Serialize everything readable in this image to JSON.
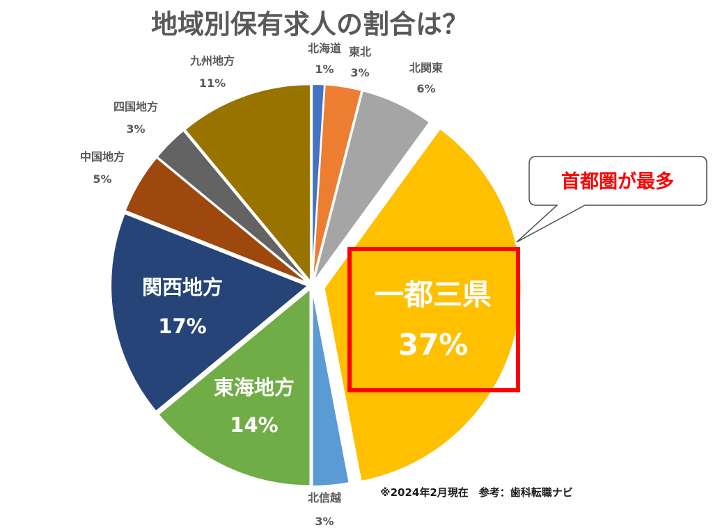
{
  "chart_data": {
    "type": "pie",
    "title": "地域別保有求人の割合は？",
    "slices": [
      {
        "name": "北海道",
        "value": 1,
        "label": "1%",
        "color": "#4472c4"
      },
      {
        "name": "東北",
        "value": 3,
        "label": "3%",
        "color": "#ed7d31"
      },
      {
        "name": "北関東",
        "value": 6,
        "label": "6%",
        "color": "#a5a5a5"
      },
      {
        "name": "一都三県",
        "value": 37,
        "label": "37%",
        "color": "#ffc000"
      },
      {
        "name": "北信越",
        "value": 3,
        "label": "3%",
        "color": "#5b9bd5"
      },
      {
        "name": "東海地方",
        "value": 14,
        "label": "14%",
        "color": "#70ad47"
      },
      {
        "name": "関西地方",
        "value": 17,
        "label": "17%",
        "color": "#264478"
      },
      {
        "name": "中国地方",
        "value": 5,
        "label": "5%",
        "color": "#9e480e"
      },
      {
        "name": "四国地方",
        "value": 3,
        "label": "3%",
        "color": "#636363"
      },
      {
        "name": "九州地方",
        "value": 11,
        "label": "11%",
        "color": "#997300"
      }
    ],
    "highlight": "一都三県"
  },
  "callout": {
    "text": "首都圏が最多"
  },
  "footnote": "※2024年2月現在　参考：歯科転職ナビ",
  "colors": {
    "highlight_box": "#ff0000",
    "callout_border": "#4a4a4a"
  }
}
